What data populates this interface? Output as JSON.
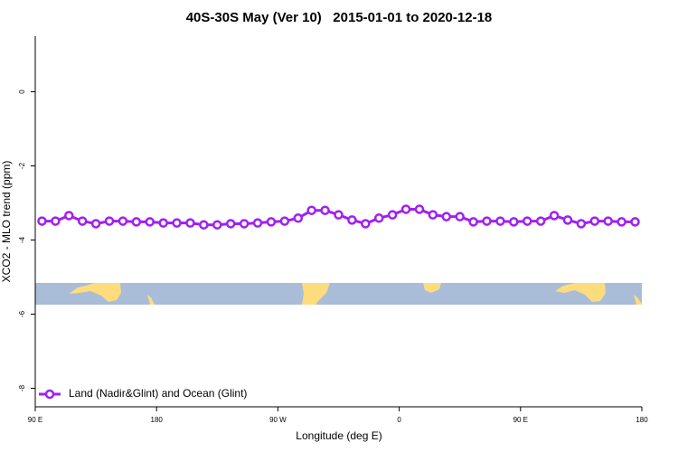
{
  "chart_data": {
    "type": "line",
    "title": "40S-30S May (Ver 10)   2015-01-01 to 2020-12-18",
    "x_label": "Longitude (deg E)",
    "y_label": "XCO2 - MLO trend (ppm)",
    "x": [
      95,
      105,
      115,
      125,
      135,
      145,
      155,
      165,
      175,
      185,
      195,
      205,
      215,
      225,
      235,
      245,
      255,
      265,
      275,
      285,
      295,
      305,
      315,
      325,
      335,
      345,
      355,
      365,
      375,
      385,
      395,
      405,
      415,
      425,
      435,
      445,
      455,
      465,
      475,
      485,
      495,
      505,
      515,
      525,
      535
    ],
    "series": [
      {
        "name": "Land (Nadir&Glint) and Ocean (Glint)",
        "color": "#a020f0",
        "values": [
          -3.49,
          -3.49,
          -3.34,
          -3.49,
          -3.56,
          -3.49,
          -3.49,
          -3.51,
          -3.51,
          -3.54,
          -3.54,
          -3.54,
          -3.59,
          -3.59,
          -3.56,
          -3.56,
          -3.54,
          -3.51,
          -3.49,
          -3.41,
          -3.2,
          -3.2,
          -3.32,
          -3.46,
          -3.56,
          -3.41,
          -3.32,
          -3.17,
          -3.17,
          -3.32,
          -3.37,
          -3.37,
          -3.51,
          -3.49,
          -3.49,
          -3.51,
          -3.49,
          -3.49,
          -3.34,
          -3.46,
          -3.56,
          -3.49,
          -3.49,
          -3.51,
          -3.51
        ]
      }
    ],
    "xlim": [
      90,
      540
    ],
    "xticks": [
      {
        "value": 90,
        "label": "90 E"
      },
      180,
      {
        "value": 270,
        "label": "90 W"
      },
      {
        "value": 360,
        "label": "0"
      },
      {
        "value": 450,
        "label": "90 E"
      },
      {
        "value": 540,
        "label": "180"
      }
    ],
    "ylim": [
      -8.5,
      1.5
    ],
    "yticks": [
      0,
      -2,
      -4,
      -6,
      -8
    ],
    "legend_position": "bottom-left"
  }
}
